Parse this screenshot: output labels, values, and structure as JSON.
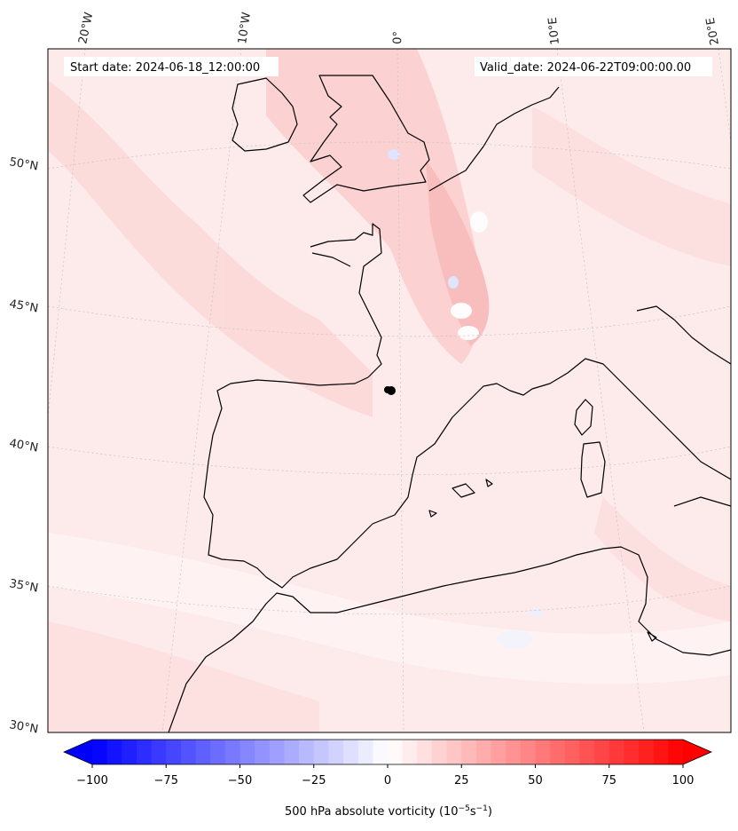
{
  "header": {
    "start_date": "Start date: 2024-06-18_12:00:00",
    "valid_date": "Valid_date: 2024-06-22T09:00:00.00"
  },
  "map": {
    "longitude_labels": [
      "20°W",
      "10°W",
      "0°",
      "10°E",
      "20°E"
    ],
    "latitude_labels": [
      "50°N",
      "45°N",
      "40°N",
      "35°N",
      "30°N"
    ],
    "background_color": "#fde8e8",
    "coastline_color": "#000000",
    "gridline_color": "#bdbdbd",
    "marker_color": "#000000"
  },
  "colorbar": {
    "ticks": [
      "−100",
      "−75",
      "−50",
      "−25",
      "0",
      "25",
      "50",
      "75",
      "100"
    ],
    "title": "500 hPa absolute vorticity (10",
    "title_exp1": "−5",
    "title_mid": "s",
    "title_exp2": "−1",
    "title_end": ")",
    "range": [
      -100,
      100
    ],
    "negative_color": "#0000ff",
    "positive_color": "#ff0000",
    "neutral_color": "#ffffff"
  }
}
